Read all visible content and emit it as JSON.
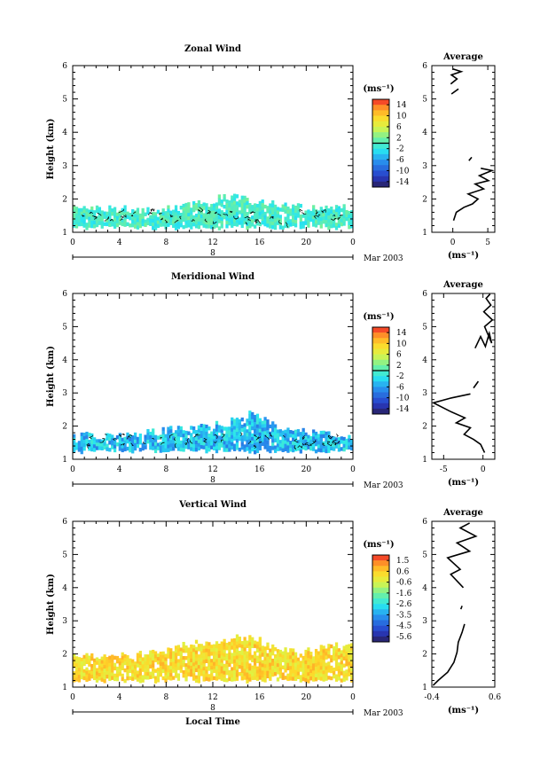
{
  "chart_data": [
    {
      "type": "heatmap",
      "title": "Zonal Wind",
      "ylabel": "Height (km)",
      "xlabel": "",
      "x_ticks": [
        "0",
        "4",
        "8",
        "12",
        "16",
        "20",
        "0"
      ],
      "y_ticks": [
        "1",
        "2",
        "3",
        "4",
        "5",
        "6"
      ],
      "xlim": [
        0,
        24
      ],
      "ylim": [
        1,
        6
      ],
      "day_label": "8",
      "month_label": "Mar 2003",
      "colorbar": {
        "unit": "(ms⁻¹)",
        "ticks": [
          "14",
          "10",
          "6",
          "2",
          "-2",
          "-6",
          "-10",
          "-14"
        ],
        "range": [
          -16,
          16
        ],
        "zero_line": 0
      },
      "field_summary": {
        "base_km": 1.2,
        "top_km": [
          1.75,
          1.72,
          1.7,
          1.68,
          1.75,
          1.85,
          2.1,
          1.95,
          1.85,
          1.78,
          1.72,
          1.72
        ],
        "mean_value": -1.5,
        "color_range": [
          -3,
          2
        ]
      },
      "profile": {
        "title": "Average",
        "xlabel": "(ms⁻¹)",
        "x_ticks": [
          "0",
          "5"
        ],
        "xlim": [
          -3,
          6
        ],
        "y_ticks": [
          "1",
          "2",
          "3",
          "4",
          "5",
          "6"
        ],
        "ylim": [
          1,
          6
        ],
        "segments": [
          [
            [
              0.1,
              1.35
            ],
            [
              0.5,
              1.6
            ],
            [
              1.6,
              1.75
            ],
            [
              2.8,
              1.85
            ],
            [
              3.6,
              2.0
            ],
            [
              2.2,
              2.15
            ],
            [
              4.4,
              2.3
            ],
            [
              3.2,
              2.45
            ],
            [
              5.1,
              2.55
            ],
            [
              3.8,
              2.7
            ],
            [
              5.6,
              2.85
            ],
            [
              4.0,
              2.92
            ]
          ],
          [
            [
              2.3,
              3.15
            ],
            [
              2.7,
              3.25
            ]
          ],
          [
            [
              -0.2,
              5.15
            ],
            [
              0.8,
              5.3
            ]
          ],
          [
            [
              -0.3,
              5.45
            ],
            [
              0.6,
              5.6
            ],
            [
              -0.2,
              5.72
            ],
            [
              1.2,
              5.82
            ],
            [
              0.0,
              5.9
            ]
          ]
        ]
      }
    },
    {
      "type": "heatmap",
      "title": "Meridional Wind",
      "ylabel": "Height (km)",
      "xlabel": "",
      "x_ticks": [
        "0",
        "4",
        "8",
        "12",
        "16",
        "20",
        "0"
      ],
      "y_ticks": [
        "1",
        "2",
        "3",
        "4",
        "5",
        "6"
      ],
      "xlim": [
        0,
        24
      ],
      "ylim": [
        1,
        6
      ],
      "day_label": "8",
      "month_label": "Mar 2003",
      "colorbar": {
        "unit": "(ms⁻¹)",
        "ticks": [
          "14",
          "10",
          "6",
          "2",
          "-2",
          "-6",
          "-10",
          "-14"
        ],
        "range": [
          -16,
          16
        ],
        "zero_line": 0
      },
      "field_summary": {
        "base_km": 1.3,
        "top_km": [
          1.7,
          1.72,
          1.75,
          1.8,
          1.9,
          2.0,
          2.05,
          2.4,
          2.0,
          1.85,
          1.78,
          1.72
        ],
        "mean_value": -3.5,
        "color_range": [
          -8,
          -1
        ]
      },
      "profile": {
        "title": "Average",
        "xlabel": "(ms⁻¹)",
        "x_ticks": [
          "-5",
          "0"
        ],
        "xlim": [
          -6.5,
          1.5
        ],
        "y_ticks": [
          "1",
          "2",
          "3",
          "4",
          "5",
          "6"
        ],
        "ylim": [
          1,
          6
        ],
        "segments": [
          [
            [
              0.2,
              1.2
            ],
            [
              -0.3,
              1.45
            ],
            [
              -1.2,
              1.6
            ],
            [
              -2.4,
              1.75
            ],
            [
              -1.6,
              1.95
            ],
            [
              -3.4,
              2.1
            ],
            [
              -2.3,
              2.25
            ],
            [
              -4.2,
              2.45
            ],
            [
              -6.3,
              2.7
            ],
            [
              -4.0,
              2.85
            ],
            [
              -1.6,
              2.97
            ]
          ],
          [
            [
              -1.2,
              3.15
            ],
            [
              -0.6,
              3.35
            ]
          ],
          [
            [
              -1.0,
              4.35
            ],
            [
              -0.3,
              4.7
            ],
            [
              0.3,
              4.4
            ],
            [
              0.8,
              4.8
            ],
            [
              1.1,
              4.5
            ],
            [
              0.2,
              5.0
            ],
            [
              1.2,
              5.2
            ],
            [
              0.1,
              5.45
            ],
            [
              1.0,
              5.65
            ],
            [
              0.4,
              5.85
            ],
            [
              0.9,
              5.98
            ]
          ]
        ]
      }
    },
    {
      "type": "heatmap",
      "title": "Vertical Wind",
      "ylabel": "Height (km)",
      "xlabel": "Local Time",
      "x_ticks": [
        "0",
        "4",
        "8",
        "12",
        "16",
        "20",
        "0"
      ],
      "y_ticks": [
        "1",
        "2",
        "3",
        "4",
        "5",
        "6"
      ],
      "xlim": [
        0,
        24
      ],
      "ylim": [
        1,
        6
      ],
      "day_label": "8",
      "month_label": "Mar 2003",
      "colorbar": {
        "unit": "(ms⁻¹)",
        "ticks": [
          "1.5",
          "0.6",
          "-0.6",
          "-1.6",
          "-2.6",
          "-3.5",
          "-4.5",
          "-5.6"
        ],
        "range": [
          -6,
          2
        ],
        "zero_line": null
      },
      "field_summary": {
        "base_km": 1.25,
        "top_km": [
          1.9,
          1.92,
          1.95,
          2.0,
          2.2,
          2.35,
          2.45,
          2.5,
          2.2,
          2.05,
          2.2,
          2.35
        ],
        "mean_value": 0.0,
        "color_range": [
          -0.5,
          0.9
        ]
      },
      "profile": {
        "title": "Average",
        "xlabel": "(ms⁻¹)",
        "x_ticks": [
          "-0.4",
          "0.6"
        ],
        "xlim": [
          -0.4,
          0.6
        ],
        "y_ticks": [
          "1",
          "2",
          "3",
          "4",
          "5",
          "6"
        ],
        "ylim": [
          1,
          6
        ],
        "segments": [
          [
            [
              -0.38,
              1.05
            ],
            [
              -0.3,
              1.2
            ],
            [
              -0.15,
              1.45
            ],
            [
              -0.05,
              1.75
            ],
            [
              0.0,
              2.05
            ],
            [
              0.02,
              2.35
            ],
            [
              0.08,
              2.65
            ],
            [
              0.12,
              2.9
            ]
          ],
          [
            [
              0.06,
              3.35
            ],
            [
              0.08,
              3.45
            ]
          ],
          [
            [
              0.1,
              4.0
            ],
            [
              -0.1,
              4.4
            ],
            [
              0.05,
              4.55
            ],
            [
              -0.15,
              4.9
            ],
            [
              0.2,
              5.1
            ],
            [
              0.0,
              5.35
            ],
            [
              0.3,
              5.55
            ],
            [
              0.05,
              5.8
            ],
            [
              0.2,
              5.95
            ]
          ]
        ]
      }
    }
  ]
}
